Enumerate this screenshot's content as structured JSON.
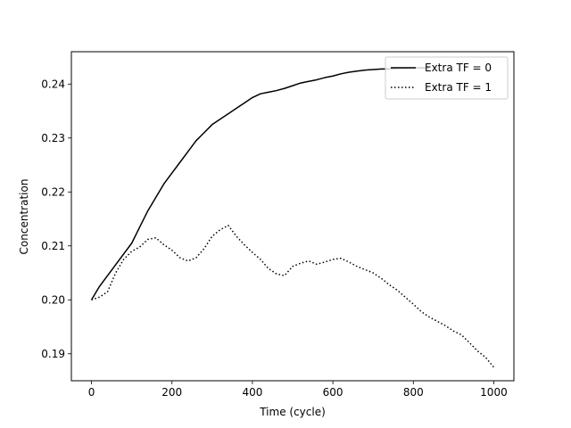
{
  "chart_data": {
    "type": "line",
    "title": "",
    "xlabel": "Time (cycle)",
    "ylabel": "Concentration",
    "xlim": [
      -50,
      1050
    ],
    "ylim": [
      0.185,
      0.246
    ],
    "xticks": [
      0,
      200,
      400,
      600,
      800,
      1000
    ],
    "yticks": [
      0.19,
      0.2,
      0.21,
      0.22,
      0.23,
      0.24
    ],
    "xtick_labels": [
      "0",
      "200",
      "400",
      "600",
      "800",
      "1000"
    ],
    "ytick_labels": [
      "0.19",
      "0.20",
      "0.21",
      "0.22",
      "0.23",
      "0.24"
    ],
    "grid": false,
    "legend_position": "top-right",
    "series": [
      {
        "name": "Extra TF = 0",
        "style": "solid",
        "color": "#000000",
        "x": [
          0,
          20,
          40,
          60,
          80,
          100,
          120,
          140,
          160,
          180,
          200,
          220,
          240,
          260,
          280,
          300,
          320,
          340,
          360,
          380,
          400,
          420,
          440,
          460,
          480,
          500,
          520,
          540,
          560,
          580,
          600,
          620,
          640,
          660,
          680,
          700,
          720,
          740,
          760,
          780,
          800,
          820,
          840
        ],
        "y": [
          0.2,
          0.2025,
          0.2045,
          0.2065,
          0.2085,
          0.2105,
          0.2135,
          0.2165,
          0.219,
          0.2215,
          0.2235,
          0.2255,
          0.2275,
          0.2295,
          0.231,
          0.2325,
          0.2335,
          0.2345,
          0.2355,
          0.2365,
          0.2375,
          0.2382,
          0.2385,
          0.2388,
          0.2392,
          0.2397,
          0.2402,
          0.2405,
          0.2408,
          0.2412,
          0.2415,
          0.2419,
          0.2422,
          0.2424,
          0.2426,
          0.2427,
          0.2428,
          0.2428,
          0.2429,
          0.2429,
          0.243,
          0.243,
          0.243
        ]
      },
      {
        "name": "Extra TF = 1",
        "style": "dotted",
        "color": "#000000",
        "x": [
          0,
          20,
          40,
          60,
          80,
          100,
          120,
          140,
          160,
          180,
          200,
          220,
          240,
          260,
          280,
          300,
          320,
          340,
          360,
          380,
          400,
          420,
          440,
          460,
          480,
          500,
          520,
          540,
          560,
          580,
          600,
          620,
          640,
          660,
          680,
          700,
          720,
          740,
          760,
          780,
          800,
          820,
          840,
          860,
          880,
          900,
          920,
          940,
          960,
          980,
          1000
        ],
        "y": [
          0.2,
          0.2005,
          0.2015,
          0.205,
          0.2075,
          0.209,
          0.2098,
          0.2112,
          0.2115,
          0.2102,
          0.2092,
          0.2078,
          0.2072,
          0.2078,
          0.2095,
          0.2118,
          0.213,
          0.2138,
          0.2118,
          0.2102,
          0.2088,
          0.2075,
          0.2058,
          0.2048,
          0.2045,
          0.2062,
          0.2068,
          0.2072,
          0.2066,
          0.207,
          0.2075,
          0.2077,
          0.207,
          0.2062,
          0.2056,
          0.205,
          0.204,
          0.2028,
          0.2018,
          0.2005,
          0.1992,
          0.1978,
          0.1968,
          0.196,
          0.1952,
          0.1942,
          0.1935,
          0.192,
          0.1905,
          0.1893,
          0.1875
        ]
      }
    ]
  }
}
